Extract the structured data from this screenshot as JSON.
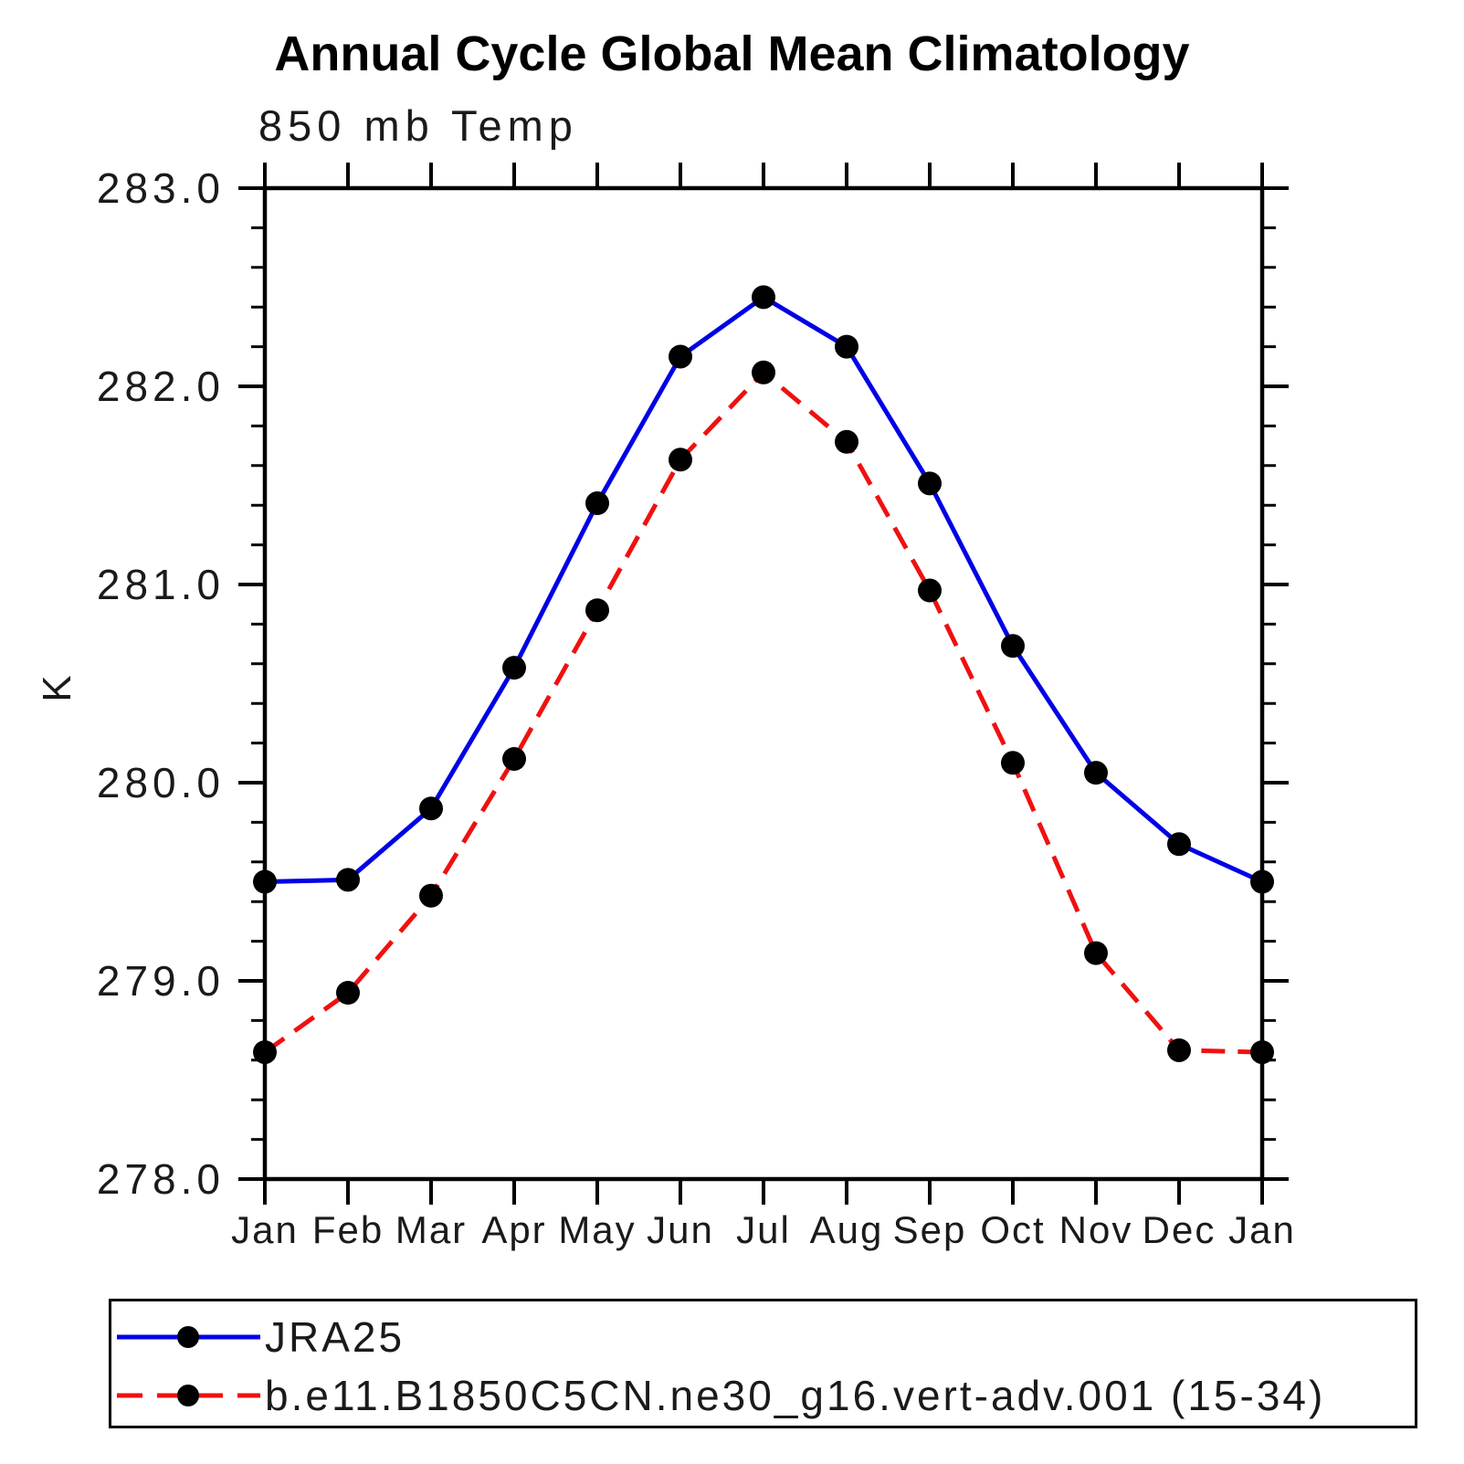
{
  "title": "Annual Cycle Global Mean Climatology",
  "subtitle": "850 mb Temp",
  "ylabel": "K",
  "chart_data": {
    "type": "line",
    "x_categories": [
      "Jan",
      "Feb",
      "Mar",
      "Apr",
      "May",
      "Jun",
      "Jul",
      "Aug",
      "Sep",
      "Oct",
      "Nov",
      "Dec",
      "Jan"
    ],
    "xlabel": "",
    "ylabel": "K",
    "ylim": [
      278.0,
      283.0
    ],
    "ytick_values": [
      278.0,
      279.0,
      280.0,
      281.0,
      282.0,
      283.0
    ],
    "ytick_labels": [
      "278.0",
      "279.0",
      "280.0",
      "281.0",
      "282.0",
      "283.0"
    ],
    "ytick_minor_step": 0.2,
    "grid": "off",
    "legend_position": "bottom-left-box",
    "marker_color": "#000000",
    "series": [
      {
        "name": "JRA25",
        "color": "#0000e6",
        "style": "solid",
        "marker": "filled-circle",
        "values": [
          279.5,
          279.51,
          279.87,
          280.58,
          281.41,
          282.15,
          282.45,
          282.2,
          281.51,
          280.69,
          280.05,
          279.69,
          279.5
        ]
      },
      {
        "name": "b.e11.B1850C5CN.ne30_g16.vert-adv.001 (15-34)",
        "color": "#f01010",
        "style": "dashed",
        "marker": "filled-circle",
        "values": [
          278.64,
          278.94,
          279.43,
          280.12,
          280.87,
          281.63,
          282.07,
          281.72,
          280.97,
          280.1,
          279.14,
          278.65,
          278.64
        ]
      }
    ]
  }
}
